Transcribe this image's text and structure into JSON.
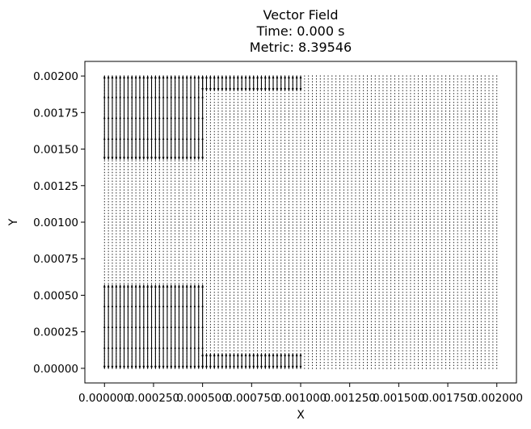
{
  "chart_data": {
    "type": "quiver",
    "title_lines": [
      "Vector Field",
      "Time: 0.000 s",
      "Metric: 8.39546"
    ],
    "xlabel": "X",
    "ylabel": "Y",
    "xlim": [
      -0.0001,
      0.0021
    ],
    "ylim": [
      -0.0001,
      0.0021
    ],
    "xticks": [
      0.0,
      0.00025,
      0.0005,
      0.00075,
      0.001,
      0.00125,
      0.0015,
      0.00175,
      0.002
    ],
    "xtick_labels": [
      "0.000000",
      "0.000250",
      "0.000500",
      "0.000750",
      "0.001000",
      "0.001250",
      "0.001500",
      "0.001750",
      "0.002000"
    ],
    "yticks": [
      0.0,
      0.00025,
      0.0005,
      0.00075,
      0.001,
      0.00125,
      0.0015,
      0.00175,
      0.002
    ],
    "ytick_labels": [
      "0.00000",
      "0.00025",
      "0.00050",
      "0.00075",
      "0.00100",
      "0.00125",
      "0.00150",
      "0.00175",
      "0.00200"
    ],
    "grid": false,
    "field": {
      "nx": 101,
      "ny": 101,
      "x_range": [
        0.0,
        0.002
      ],
      "y_range": [
        0.0,
        0.002
      ],
      "direction": "vertical",
      "arrow_color": "#000000",
      "regions": [
        {
          "x_range": [
            0.0,
            0.0005
          ],
          "y_range": [
            0.00143,
            0.002
          ],
          "magnitude": "large"
        },
        {
          "x_range": [
            0.0005,
            0.001
          ],
          "y_range": [
            0.0019,
            0.002
          ],
          "magnitude": "large"
        },
        {
          "x_range": [
            0.0,
            0.0005
          ],
          "y_range": [
            0.0,
            0.00057
          ],
          "magnitude": "large"
        },
        {
          "x_range": [
            0.0005,
            0.001
          ],
          "y_range": [
            0.0,
            0.0001
          ],
          "magnitude": "large"
        }
      ]
    }
  }
}
